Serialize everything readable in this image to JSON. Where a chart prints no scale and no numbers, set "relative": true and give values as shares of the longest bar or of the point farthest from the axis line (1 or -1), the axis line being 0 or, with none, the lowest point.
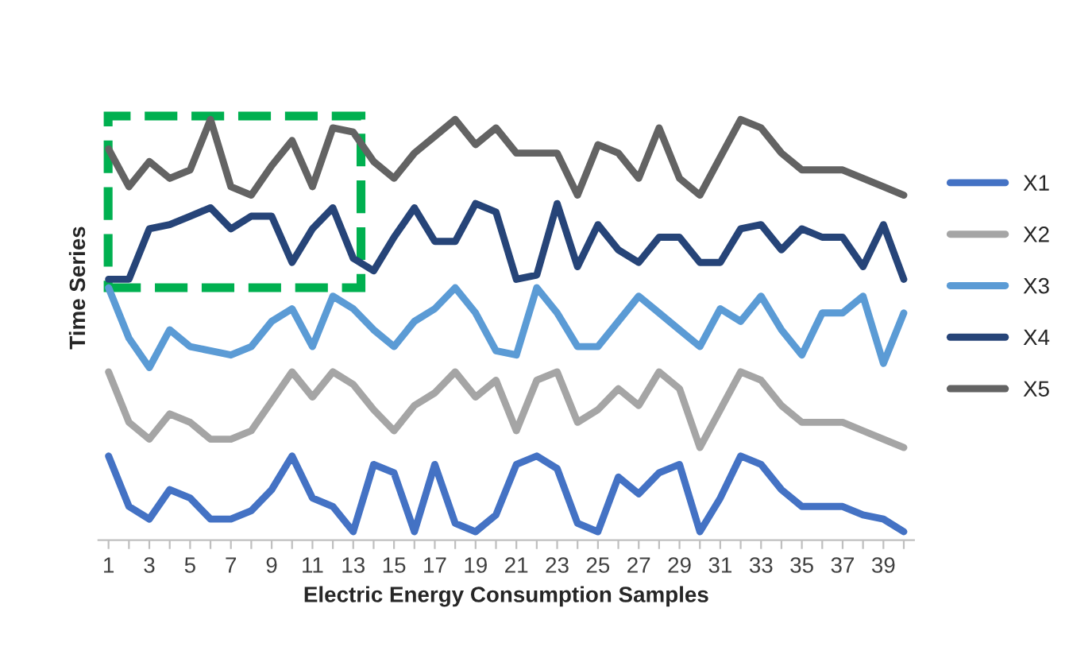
{
  "chart_data": {
    "type": "line",
    "relative": true,
    "xlabel": "Electric Energy Consumption Samples",
    "ylabel": "Time Series",
    "legend": "right",
    "marker": "none",
    "line_style": "solid",
    "categories": [
      "1",
      null,
      "3",
      null,
      "5",
      null,
      "7",
      null,
      "9",
      null,
      "11",
      null,
      "13",
      null,
      "15",
      null,
      "17",
      null,
      "19",
      null,
      "21",
      null,
      "23",
      null,
      "25",
      null,
      "27",
      null,
      "29",
      null,
      "31",
      null,
      "33",
      null,
      "35",
      null,
      "37",
      null,
      "39",
      null
    ],
    "series": [
      {
        "name": "X1",
        "color": "#4472c4",
        "values": [
          0.2,
          0.08,
          0.05,
          0.12,
          0.1,
          0.05,
          0.05,
          0.07,
          0.12,
          0.2,
          0.1,
          0.08,
          0.02,
          0.18,
          0.16,
          0.02,
          0.18,
          0.04,
          0.02,
          0.06,
          0.18,
          0.2,
          0.17,
          0.04,
          0.02,
          0.15,
          0.11,
          0.16,
          0.18,
          0.02,
          0.1,
          0.2,
          0.18,
          0.12,
          0.08,
          0.08,
          0.08,
          0.06,
          0.05,
          0.02
        ]
      },
      {
        "name": "X2",
        "color": "#a5a5a5",
        "values": [
          0.4,
          0.28,
          0.24,
          0.3,
          0.28,
          0.24,
          0.24,
          0.26,
          0.33,
          0.4,
          0.34,
          0.4,
          0.37,
          0.31,
          0.26,
          0.32,
          0.35,
          0.4,
          0.34,
          0.38,
          0.26,
          0.38,
          0.4,
          0.28,
          0.31,
          0.36,
          0.32,
          0.4,
          0.36,
          0.22,
          0.31,
          0.4,
          0.38,
          0.32,
          0.28,
          0.28,
          0.28,
          0.26,
          0.24,
          0.22
        ]
      },
      {
        "name": "X3",
        "color": "#5b9bd5",
        "values": [
          0.6,
          0.48,
          0.41,
          0.5,
          0.46,
          0.45,
          0.44,
          0.46,
          0.52,
          0.55,
          0.46,
          0.58,
          0.55,
          0.5,
          0.46,
          0.52,
          0.55,
          0.6,
          0.54,
          0.45,
          0.44,
          0.6,
          0.54,
          0.46,
          0.46,
          0.52,
          0.58,
          0.54,
          0.5,
          0.46,
          0.55,
          0.52,
          0.58,
          0.5,
          0.44,
          0.54,
          0.54,
          0.58,
          0.42,
          0.54
        ]
      },
      {
        "name": "X4",
        "color": "#264478",
        "values": [
          0.62,
          0.62,
          0.74,
          0.75,
          0.77,
          0.79,
          0.74,
          0.77,
          0.77,
          0.66,
          0.74,
          0.79,
          0.67,
          0.64,
          0.72,
          0.79,
          0.71,
          0.71,
          0.8,
          0.78,
          0.62,
          0.63,
          0.8,
          0.65,
          0.75,
          0.69,
          0.66,
          0.72,
          0.72,
          0.66,
          0.66,
          0.74,
          0.75,
          0.69,
          0.74,
          0.72,
          0.72,
          0.65,
          0.75,
          0.62
        ]
      },
      {
        "name": "X5",
        "color": "#636363",
        "values": [
          0.93,
          0.84,
          0.9,
          0.86,
          0.88,
          1.0,
          0.84,
          0.82,
          0.89,
          0.95,
          0.84,
          0.98,
          0.97,
          0.9,
          0.86,
          0.92,
          0.96,
          1.0,
          0.94,
          0.98,
          0.92,
          0.92,
          0.92,
          0.82,
          0.94,
          0.92,
          0.86,
          0.98,
          0.86,
          0.82,
          0.91,
          1.0,
          0.98,
          0.92,
          0.88,
          0.88,
          0.88,
          0.86,
          0.84,
          0.82
        ]
      }
    ]
  }
}
